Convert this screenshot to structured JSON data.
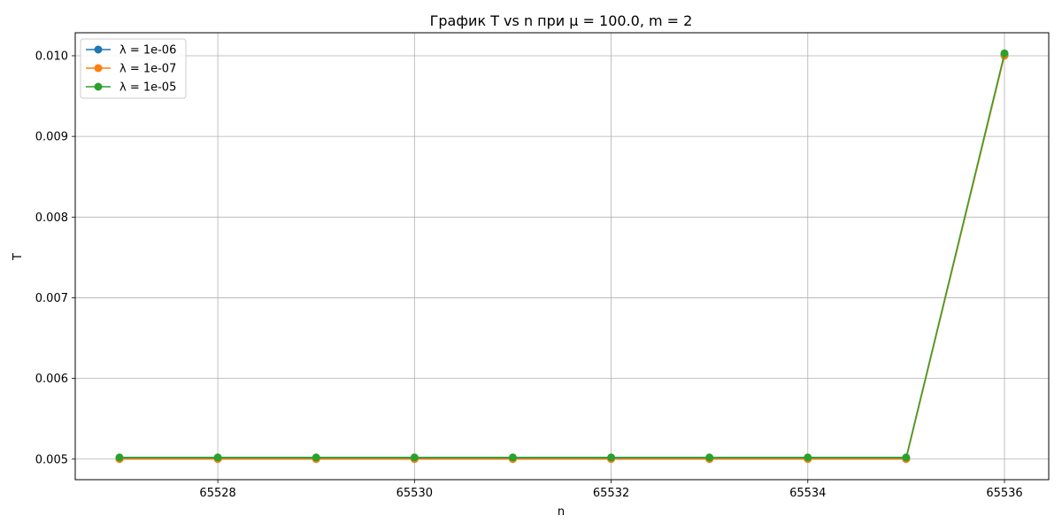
{
  "chart_data": {
    "type": "line",
    "title": "График T vs n при μ = 100.0, m = 2",
    "xlabel": "n",
    "ylabel": "T",
    "x": [
      65527,
      65528,
      65529,
      65530,
      65531,
      65532,
      65533,
      65534,
      65535,
      65536
    ],
    "xlim": [
      65526.55,
      65536.45
    ],
    "ylim": [
      0.004745,
      0.010285
    ],
    "x_ticks": [
      65528,
      65530,
      65532,
      65534,
      65536
    ],
    "x_tick_labels": [
      "65528",
      "65530",
      "65532",
      "65534",
      "65536"
    ],
    "y_ticks": [
      0.005,
      0.006,
      0.007,
      0.008,
      0.009,
      0.01
    ],
    "y_tick_labels": [
      "0.005",
      "0.006",
      "0.007",
      "0.008",
      "0.009",
      "0.010"
    ],
    "grid": true,
    "legend_position": "top-left",
    "series": [
      {
        "name": "λ = 1e-06",
        "color": "#1f77b4",
        "marker": "circle",
        "values": [
          0.005005,
          0.005005,
          0.005005,
          0.005005,
          0.005005,
          0.005005,
          0.005005,
          0.005005,
          0.005005,
          0.01001
        ]
      },
      {
        "name": "λ = 1e-07",
        "color": "#ff7f0e",
        "marker": "circle",
        "values": [
          0.005,
          0.005,
          0.005,
          0.005,
          0.005,
          0.005,
          0.005,
          0.005,
          0.005,
          0.01
        ]
      },
      {
        "name": "λ = 1e-05",
        "color": "#2ca02c",
        "marker": "circle",
        "values": [
          0.00502,
          0.00502,
          0.00502,
          0.00502,
          0.00502,
          0.00502,
          0.00502,
          0.00502,
          0.00502,
          0.01003
        ]
      }
    ]
  }
}
